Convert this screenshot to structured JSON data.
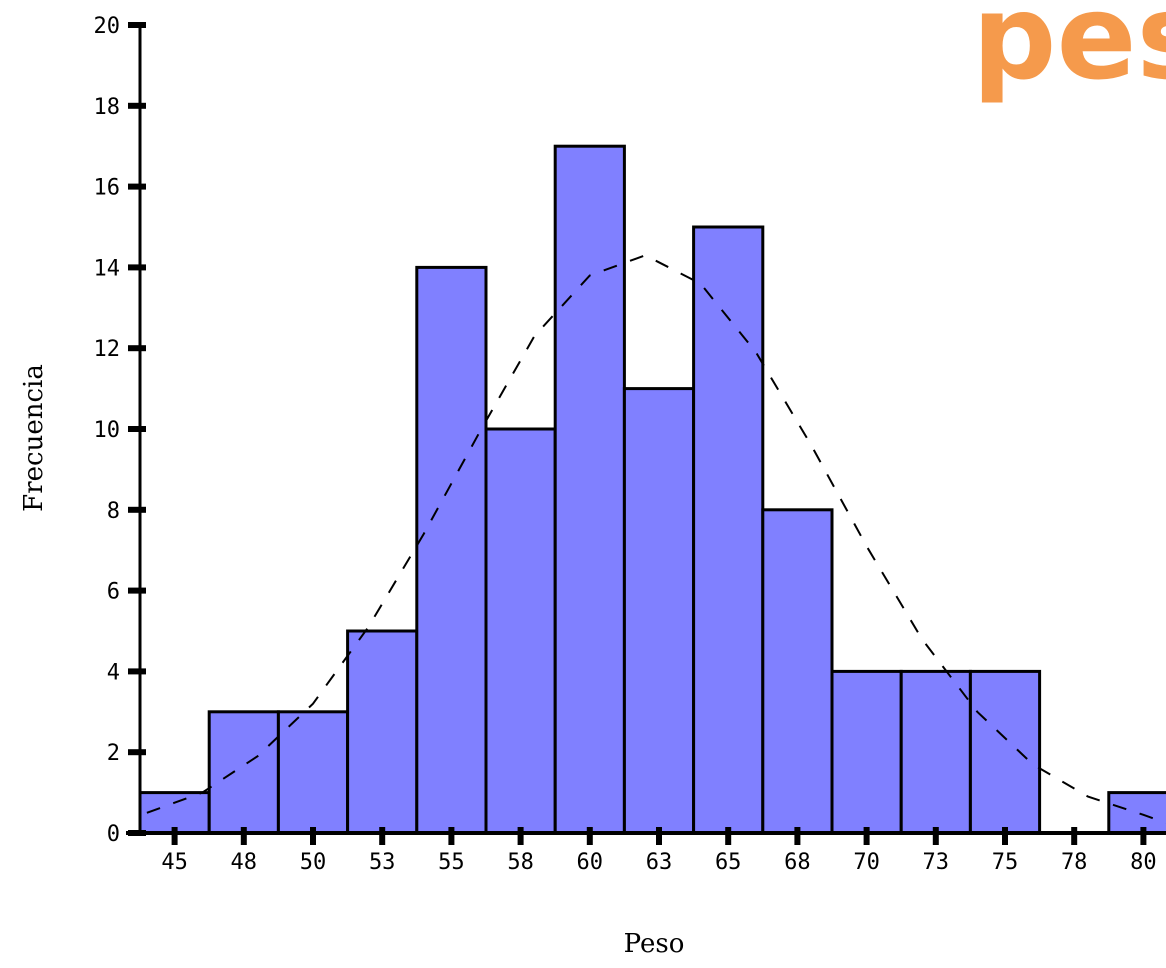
{
  "overlay_text": "pes",
  "chart_data": {
    "type": "bar",
    "subtype": "histogram",
    "xlabel": "Peso",
    "ylabel": "Frecuencia",
    "ylim": [
      0,
      20
    ],
    "y_ticks": [
      0,
      2,
      4,
      6,
      8,
      10,
      12,
      14,
      16,
      18,
      20
    ],
    "categories": [
      "45",
      "48",
      "50",
      "53",
      "55",
      "58",
      "60",
      "63",
      "65",
      "68",
      "70",
      "73",
      "75",
      "78",
      "80"
    ],
    "values": [
      1,
      3,
      3,
      5,
      14,
      10,
      17,
      11,
      15,
      8,
      4,
      4,
      4,
      0,
      1
    ],
    "normal_curve": {
      "style": "dashed",
      "mean": 61.9,
      "peak": 14.3,
      "sd": 6.9,
      "x": [
        44.0,
        46.0,
        48.0,
        50.0,
        52.0,
        54.0,
        56.0,
        58.0,
        60.0,
        62.0,
        64.0,
        66.0,
        68.0,
        70.0,
        72.0,
        74.0,
        76.0,
        78.0,
        80.0,
        81.5
      ],
      "y": [
        0.5,
        1.0,
        1.9,
        3.2,
        5.1,
        7.4,
        9.9,
        12.3,
        13.8,
        14.3,
        13.6,
        11.9,
        9.6,
        7.1,
        4.8,
        3.0,
        1.7,
        0.9,
        0.45,
        0.25
      ]
    },
    "colors": {
      "bar_fill": "#8080ff",
      "bar_stroke": "#000000",
      "curve": "#000000",
      "overlay_text": "#f59a4c"
    }
  }
}
